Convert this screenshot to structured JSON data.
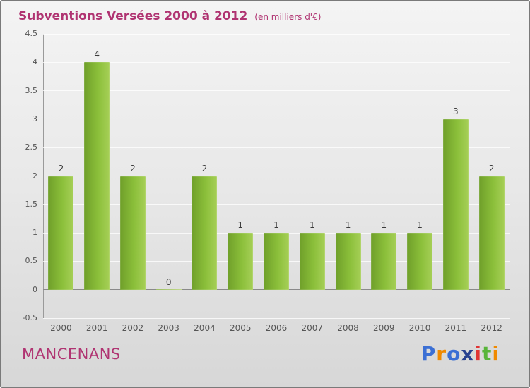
{
  "header": {
    "title": "Subventions Versées 2000 à 2012",
    "subtitle": "(en milliers d'€)"
  },
  "footer": {
    "org_name": "MANCENANS",
    "logo_letters": [
      {
        "ch": "P",
        "color": "#3b6fd4"
      },
      {
        "ch": "r",
        "color": "#f08a00"
      },
      {
        "ch": "o",
        "color": "#3b6fd4"
      },
      {
        "ch": "x",
        "color": "#27408f"
      },
      {
        "ch": "i",
        "color": "#e03434"
      },
      {
        "ch": "t",
        "color": "#58b53a"
      },
      {
        "ch": "i",
        "color": "#f08a00"
      }
    ]
  },
  "chart_data": {
    "type": "bar",
    "title": "Subventions Versées 2000 à 2012",
    "subtitle": "(en milliers d'€)",
    "categories": [
      "2000",
      "2001",
      "2002",
      "2003",
      "2004",
      "2005",
      "2006",
      "2007",
      "2008",
      "2009",
      "2010",
      "2011",
      "2012"
    ],
    "values": [
      2,
      4,
      2,
      0,
      2,
      1,
      1,
      1,
      1,
      1,
      1,
      3,
      2
    ],
    "xlabel": "",
    "ylabel": "",
    "ylim": [
      -0.5,
      4.5
    ],
    "ytick_step": 0.5,
    "grid": true,
    "legend": "none",
    "bar_color_dark": "#6f9f2a",
    "bar_color_light": "#a6cf57",
    "title_color": "#b03472",
    "axis_text_color": "#555555"
  }
}
